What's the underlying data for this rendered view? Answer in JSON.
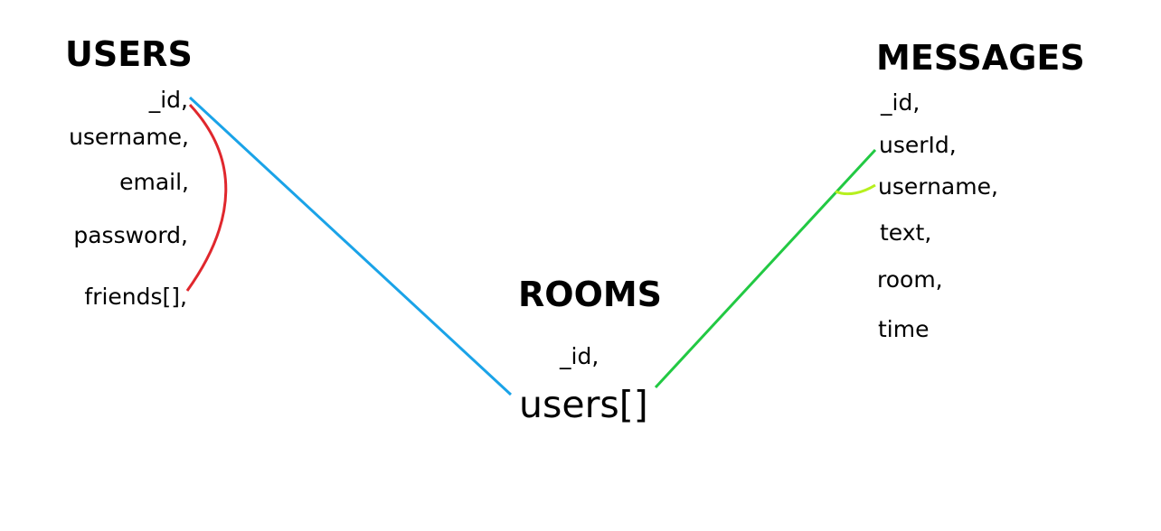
{
  "users": {
    "title": "USERS",
    "fields": [
      "_id,",
      "username,",
      "email,",
      "password,",
      "friends[],"
    ]
  },
  "rooms": {
    "title": "ROOMS",
    "fields": [
      "_id,",
      "users[]"
    ]
  },
  "messages": {
    "title": "MESSAGES",
    "fields": [
      "_id,",
      "userId,",
      "username,",
      "text,",
      "room,",
      "time"
    ]
  },
  "colors": {
    "users_id_to_room_users": "#1aa3e8",
    "users_id_to_friends": "#e0272d",
    "room_users_to_message_userid": "#22c943",
    "message_username_link": "#b6f01e"
  }
}
